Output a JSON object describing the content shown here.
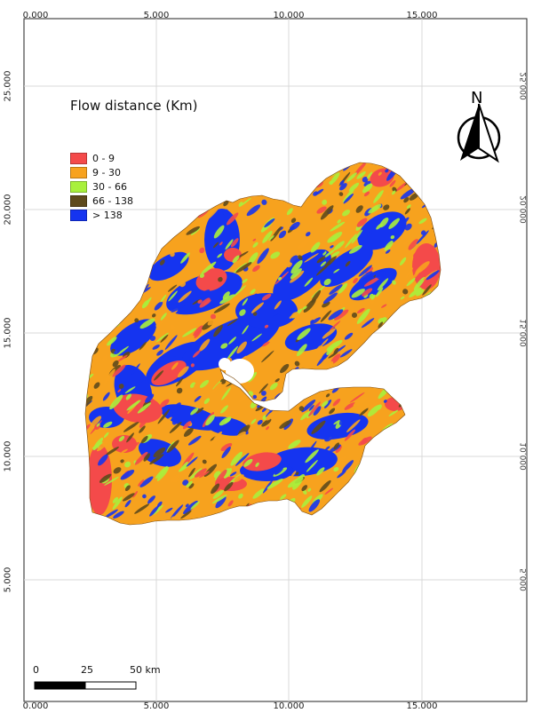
{
  "legend": {
    "title": "Flow distance (Km)",
    "classes": [
      {
        "label": "0 - 9",
        "color": "#f44a4a"
      },
      {
        "label": "9 - 30",
        "color": "#f7a21e"
      },
      {
        "label": "30 - 66",
        "color": "#a8f03c"
      },
      {
        "label": "66 - 138",
        "color": "#5e4a1c"
      },
      {
        "label": "> 138",
        "color": "#1534f0"
      }
    ]
  },
  "grid": {
    "top_ticks": [
      "0.000",
      "5.000",
      "10.000",
      "15.000"
    ],
    "bottom_ticks": [
      "0.000",
      "5.000",
      "10.000",
      "15.000"
    ],
    "left_ticks": [
      "25.000",
      "20.000",
      "15.000",
      "10.000",
      "5.000"
    ],
    "right_ticks": [
      "25.000",
      "20.000",
      "15.000",
      "10.000",
      "5.000"
    ]
  },
  "north_arrow": {
    "label": "N",
    "icon": "north-arrow-icon"
  },
  "scale_bar": {
    "labels": [
      "0",
      "25",
      "50 km"
    ]
  }
}
